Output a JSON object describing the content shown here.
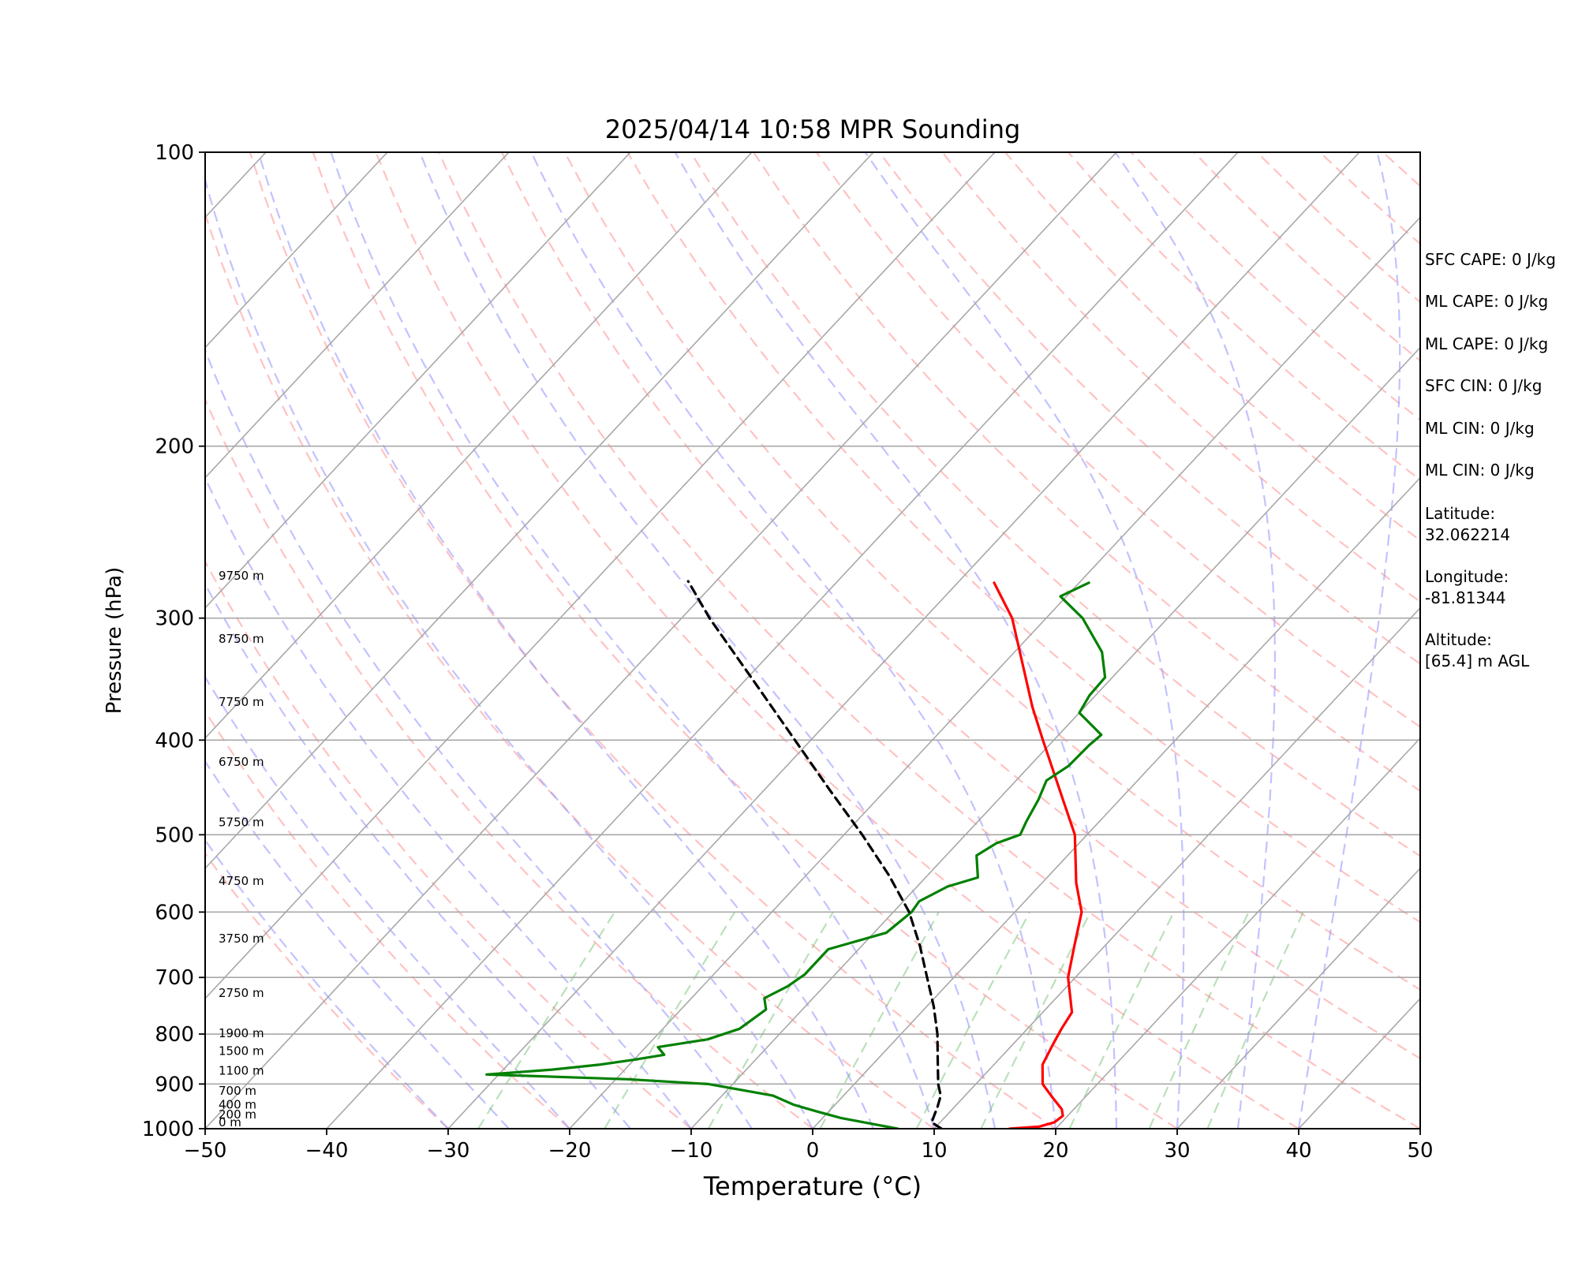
{
  "chart_data": {
    "type": "line",
    "title": "2025/04/14 10:58 MPR Sounding",
    "xlabel": "Temperature (°C)",
    "ylabel": "Pressure (hPa)",
    "xlim": [
      -50,
      50
    ],
    "ylim": [
      1000,
      100
    ],
    "y_scale": "log",
    "x_ticks": [
      "−50",
      "−40",
      "−30",
      "−20",
      "−10",
      "0",
      "10",
      "20",
      "30",
      "40",
      "50"
    ],
    "y_ticks": [
      100,
      200,
      300,
      400,
      500,
      600,
      700,
      800,
      900,
      1000
    ],
    "skew_per_decade_degC": 75,
    "grid": true,
    "height_labels": [
      {
        "p": 994,
        "label": "0 m"
      },
      {
        "p": 976,
        "label": "200 m"
      },
      {
        "p": 954,
        "label": "400 m"
      },
      {
        "p": 923,
        "label": "700 m"
      },
      {
        "p": 880,
        "label": "1100 m"
      },
      {
        "p": 840,
        "label": "1500 m"
      },
      {
        "p": 806,
        "label": "1900 m"
      },
      {
        "p": 733,
        "label": "2750 m"
      },
      {
        "p": 645,
        "label": "3750 m"
      },
      {
        "p": 563,
        "label": "4750 m"
      },
      {
        "p": 490,
        "label": "5750 m"
      },
      {
        "p": 425,
        "label": "6750 m"
      },
      {
        "p": 369,
        "label": "7750 m"
      },
      {
        "p": 318,
        "label": "8750 m"
      },
      {
        "p": 274,
        "label": "9750 m"
      }
    ],
    "series": [
      {
        "role": "temperature",
        "color": "#ff0000",
        "points": [
          [
            1000,
            16.2
          ],
          [
            995,
            18.5
          ],
          [
            985,
            19.4
          ],
          [
            970,
            19.6
          ],
          [
            955,
            19.0
          ],
          [
            930,
            17.4
          ],
          [
            900,
            15.5
          ],
          [
            860,
            14.0
          ],
          [
            820,
            13.3
          ],
          [
            790,
            12.8
          ],
          [
            760,
            12.4
          ],
          [
            700,
            9.4
          ],
          [
            650,
            7.5
          ],
          [
            600,
            5.5
          ],
          [
            560,
            2.8
          ],
          [
            500,
            -1.0
          ],
          [
            460,
            -4.7
          ],
          [
            400,
            -10.9
          ],
          [
            370,
            -14.3
          ],
          [
            300,
            -22.8
          ],
          [
            276,
            -27.0
          ]
        ]
      },
      {
        "role": "dewpoint",
        "color": "#008000",
        "points": [
          [
            1000,
            7.0
          ],
          [
            990,
            4.8
          ],
          [
            975,
            1.5
          ],
          [
            960,
            -1.0
          ],
          [
            945,
            -3.4
          ],
          [
            925,
            -5.8
          ],
          [
            900,
            -12.0
          ],
          [
            890,
            -19.0
          ],
          [
            880,
            -31.0
          ],
          [
            870,
            -26.0
          ],
          [
            860,
            -22.5
          ],
          [
            850,
            -20.0
          ],
          [
            840,
            -17.9
          ],
          [
            825,
            -19.0
          ],
          [
            810,
            -15.5
          ],
          [
            790,
            -13.7
          ],
          [
            755,
            -13.0
          ],
          [
            735,
            -14.0
          ],
          [
            715,
            -13.0
          ],
          [
            695,
            -12.5
          ],
          [
            655,
            -12.5
          ],
          [
            630,
            -9.0
          ],
          [
            600,
            -8.5
          ],
          [
            585,
            -8.7
          ],
          [
            565,
            -7.5
          ],
          [
            553,
            -5.7
          ],
          [
            525,
            -7.5
          ],
          [
            510,
            -6.8
          ],
          [
            500,
            -5.5
          ],
          [
            485,
            -6.0
          ],
          [
            460,
            -6.7
          ],
          [
            440,
            -7.5
          ],
          [
            425,
            -6.8
          ],
          [
            405,
            -6.7
          ],
          [
            395,
            -6.5
          ],
          [
            375,
            -10.0
          ],
          [
            360,
            -10.5
          ],
          [
            345,
            -10.6
          ],
          [
            325,
            -12.8
          ],
          [
            300,
            -17.0
          ],
          [
            285,
            -20.5
          ],
          [
            276,
            -19.2
          ]
        ]
      },
      {
        "role": "parcel",
        "color": "#000000",
        "style": "dashed",
        "points": [
          [
            1000,
            10.6
          ],
          [
            985,
            9.3
          ],
          [
            970,
            9.0
          ],
          [
            950,
            8.6
          ],
          [
            925,
            8.0
          ],
          [
            900,
            6.9
          ],
          [
            850,
            5.0
          ],
          [
            800,
            3.0
          ],
          [
            750,
            0.6
          ],
          [
            700,
            -2.2
          ],
          [
            650,
            -5.2
          ],
          [
            600,
            -8.7
          ],
          [
            550,
            -13.2
          ],
          [
            500,
            -18.5
          ],
          [
            450,
            -24.6
          ],
          [
            400,
            -31.3
          ],
          [
            350,
            -38.9
          ],
          [
            300,
            -47.7
          ],
          [
            275,
            -52.3
          ]
        ]
      }
    ]
  },
  "panel": {
    "sfc_cape": "SFC CAPE: 0 J/kg",
    "ml_cape_1": "ML CAPE: 0 J/kg",
    "ml_cape_2": "ML CAPE: 0 J/kg",
    "sfc_cin": "SFC CIN: 0 J/kg",
    "ml_cin_1": "ML CIN: 0 J/kg",
    "ml_cin_2": "ML CIN: 0 J/kg",
    "latitude_label": "Latitude:",
    "latitude_value": "32.062214",
    "longitude_label": "Longitude:",
    "longitude_value": "-81.81344",
    "altitude_label": "Altitude:",
    "altitude_value": "[65.4] m AGL"
  }
}
